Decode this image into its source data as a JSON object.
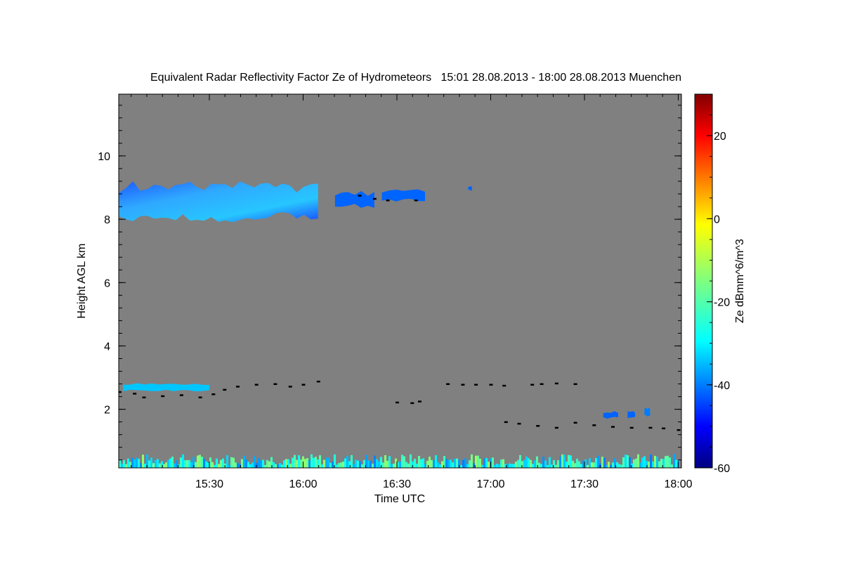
{
  "chart_data": {
    "type": "heatmap",
    "title": "Equivalent Radar Reflectivity Factor Ze of Hydrometeors   15:01 28.08.2013 - 18:00 28.08.2013 Muenchen",
    "xlabel": "Time UTC",
    "ylabel": "Height AGL km",
    "x_ticks": [
      {
        "value": 15.5,
        "label": "15:30"
      },
      {
        "value": 16.0,
        "label": "16:00"
      },
      {
        "value": 16.5,
        "label": "16:30"
      },
      {
        "value": 17.0,
        "label": "17:00"
      },
      {
        "value": 17.5,
        "label": "17:30"
      },
      {
        "value": 18.0,
        "label": "18:00"
      }
    ],
    "xlim": [
      15.017,
      18.017
    ],
    "y_ticks": [
      {
        "value": 2,
        "label": "2"
      },
      {
        "value": 4,
        "label": "4"
      },
      {
        "value": 6,
        "label": "6"
      },
      {
        "value": 8,
        "label": "8"
      },
      {
        "value": 10,
        "label": "10"
      }
    ],
    "ylim": [
      0.15,
      11.95
    ],
    "background_color": "#808080",
    "colorbar": {
      "label": "Ze dBmm^6/m^3",
      "range": [
        -60,
        30
      ],
      "ticks": [
        {
          "value": 20,
          "label": "20"
        },
        {
          "value": 0,
          "label": "0"
        },
        {
          "value": -20,
          "label": "-20"
        },
        {
          "value": -40,
          "label": "-40"
        },
        {
          "value": -60,
          "label": "-60"
        }
      ]
    },
    "echo_regions": [
      {
        "name": "cirrus-main",
        "time": [
          15.017,
          16.08
        ],
        "height_bottom": 7.9,
        "height_top": 9.2,
        "ze": -40
      },
      {
        "name": "cirrus-2",
        "time": [
          16.17,
          16.38
        ],
        "height_bottom": 8.35,
        "height_top": 8.9,
        "ze": -42
      },
      {
        "name": "cirrus-3",
        "time": [
          16.42,
          16.65
        ],
        "height_bottom": 8.55,
        "height_top": 8.95,
        "ze": -42
      },
      {
        "name": "speck",
        "time": [
          16.88,
          16.9
        ],
        "height_bottom": 8.9,
        "height_top": 9.05,
        "ze": -42
      },
      {
        "name": "low-cloud-1",
        "time": [
          15.04,
          15.5
        ],
        "height_bottom": 2.55,
        "height_top": 2.85,
        "ze": -34
      },
      {
        "name": "low-echo-1",
        "time": [
          17.73,
          17.77
        ],
        "height_bottom": 1.7,
        "height_top": 1.95,
        "ze": -42
      },
      {
        "name": "low-echo-2",
        "time": [
          17.82,
          17.85
        ],
        "height_bottom": 1.75,
        "height_top": 2.1,
        "ze": -40
      },
      {
        "name": "low-echo-3",
        "time": [
          17.6,
          17.68
        ],
        "height_bottom": 1.7,
        "height_top": 1.95,
        "ze": -42
      },
      {
        "name": "ground-clutter",
        "time": [
          15.017,
          18.0
        ],
        "height_bottom": 0.15,
        "height_top": 0.5,
        "ze": -25
      }
    ],
    "cloud_base": [
      {
        "time": 15.02,
        "height": 2.55
      },
      {
        "time": 15.1,
        "height": 2.5
      },
      {
        "time": 15.15,
        "height": 2.38
      },
      {
        "time": 15.25,
        "height": 2.42
      },
      {
        "time": 15.35,
        "height": 2.45
      },
      {
        "time": 15.45,
        "height": 2.38
      },
      {
        "time": 15.52,
        "height": 2.48
      },
      {
        "time": 15.58,
        "height": 2.62
      },
      {
        "time": 15.65,
        "height": 2.72
      },
      {
        "time": 15.75,
        "height": 2.78
      },
      {
        "time": 15.85,
        "height": 2.8
      },
      {
        "time": 15.93,
        "height": 2.72
      },
      {
        "time": 16.0,
        "height": 2.78
      },
      {
        "time": 16.08,
        "height": 2.88
      },
      {
        "time": 16.3,
        "height": 8.75
      },
      {
        "time": 16.38,
        "height": 8.65
      },
      {
        "time": 16.45,
        "height": 8.6
      },
      {
        "time": 16.6,
        "height": 8.6
      },
      {
        "time": 16.5,
        "height": 2.22
      },
      {
        "time": 16.58,
        "height": 2.2
      },
      {
        "time": 16.62,
        "height": 2.25
      },
      {
        "time": 16.77,
        "height": 2.8
      },
      {
        "time": 16.85,
        "height": 2.78
      },
      {
        "time": 16.92,
        "height": 2.78
      },
      {
        "time": 17.0,
        "height": 2.78
      },
      {
        "time": 17.07,
        "height": 2.75
      },
      {
        "time": 17.22,
        "height": 2.78
      },
      {
        "time": 17.27,
        "height": 2.8
      },
      {
        "time": 17.35,
        "height": 2.82
      },
      {
        "time": 17.45,
        "height": 2.8
      },
      {
        "time": 17.08,
        "height": 1.6
      },
      {
        "time": 17.15,
        "height": 1.55
      },
      {
        "time": 17.25,
        "height": 1.48
      },
      {
        "time": 17.35,
        "height": 1.42
      },
      {
        "time": 17.45,
        "height": 1.58
      },
      {
        "time": 17.55,
        "height": 1.5
      },
      {
        "time": 17.65,
        "height": 1.45
      },
      {
        "time": 17.75,
        "height": 1.42
      },
      {
        "time": 17.85,
        "height": 1.42
      },
      {
        "time": 17.92,
        "height": 1.4
      },
      {
        "time": 18.0,
        "height": 1.35
      }
    ]
  }
}
